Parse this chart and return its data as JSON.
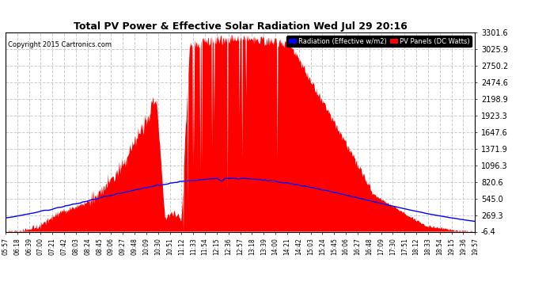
{
  "title": "Total PV Power & Effective Solar Radiation Wed Jul 29 20:16",
  "copyright": "Copyright 2015 Cartronics.com",
  "legend_blue": "Radiation (Effective w/m2)",
  "legend_red": "PV Panels (DC Watts)",
  "bg_color": "#ffffff",
  "plot_bg_color": "#ffffff",
  "grid_color": "#c8c8c8",
  "red_color": "#ff0000",
  "blue_color": "#0000ff",
  "ylim_min": -6.4,
  "ylim_max": 3301.6,
  "yticks": [
    -6.4,
    269.3,
    545.0,
    820.6,
    1096.3,
    1371.9,
    1647.6,
    1923.3,
    2198.9,
    2474.6,
    2750.2,
    3025.9,
    3301.6
  ],
  "time_labels": [
    "05:57",
    "06:18",
    "06:39",
    "07:00",
    "07:21",
    "07:42",
    "08:03",
    "08:24",
    "08:45",
    "09:06",
    "09:27",
    "09:48",
    "10:09",
    "10:30",
    "10:51",
    "11:12",
    "11:33",
    "11:54",
    "12:15",
    "12:36",
    "12:57",
    "13:18",
    "13:39",
    "14:00",
    "14:21",
    "14:42",
    "15:03",
    "15:24",
    "15:45",
    "16:06",
    "16:27",
    "16:48",
    "17:09",
    "17:30",
    "17:51",
    "18:12",
    "18:33",
    "18:54",
    "19:15",
    "19:36",
    "19:57"
  ]
}
